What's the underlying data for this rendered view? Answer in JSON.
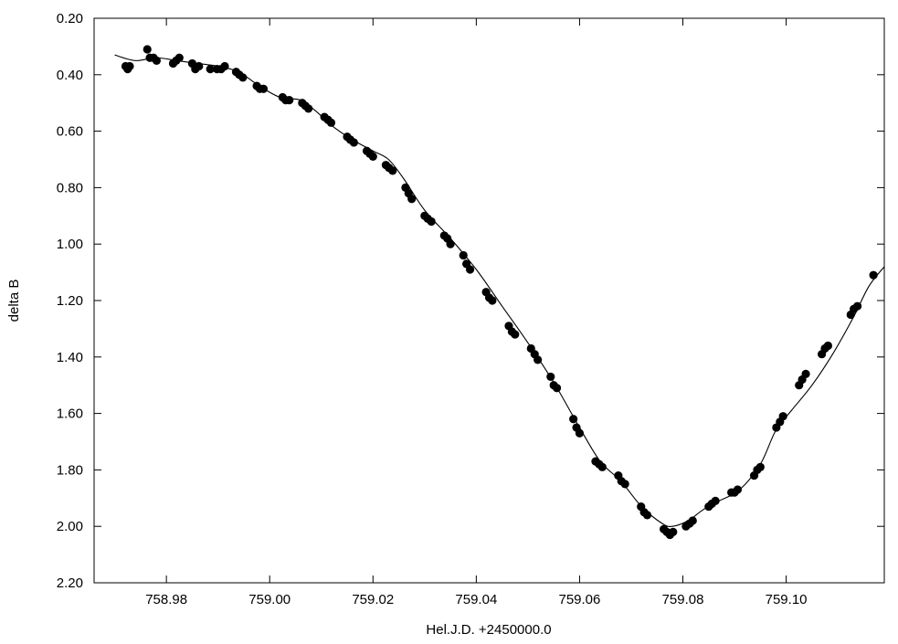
{
  "chart_data": {
    "type": "scatter",
    "title": "",
    "xlabel": "Hel.J.D. +2450000.0",
    "ylabel": "delta B",
    "xlim": [
      758.966,
      759.119
    ],
    "ylim": [
      0.2,
      2.2
    ],
    "y_inverted": true,
    "grid": false,
    "x_ticks": [
      {
        "value": 758.98,
        "label": "758.98"
      },
      {
        "value": 759.0,
        "label": "759.00"
      },
      {
        "value": 759.02,
        "label": "759.02"
      },
      {
        "value": 759.04,
        "label": "759.04"
      },
      {
        "value": 759.06,
        "label": "759.06"
      },
      {
        "value": 759.08,
        "label": "759.08"
      },
      {
        "value": 759.1,
        "label": "759.10"
      }
    ],
    "y_ticks": [
      {
        "value": 0.2,
        "label": "0.20"
      },
      {
        "value": 0.4,
        "label": "0.40"
      },
      {
        "value": 0.6,
        "label": "0.60"
      },
      {
        "value": 0.8,
        "label": "0.80"
      },
      {
        "value": 1.0,
        "label": "1.00"
      },
      {
        "value": 1.2,
        "label": "1.20"
      },
      {
        "value": 1.4,
        "label": "1.40"
      },
      {
        "value": 1.6,
        "label": "1.60"
      },
      {
        "value": 1.8,
        "label": "1.80"
      },
      {
        "value": 2.0,
        "label": "2.00"
      },
      {
        "value": 2.2,
        "label": "2.20"
      }
    ],
    "series": [
      {
        "kind": "points",
        "color": "#000000",
        "points": [
          [
            758.9721,
            0.37
          ],
          [
            758.9725,
            0.38
          ],
          [
            758.9729,
            0.37
          ],
          [
            758.9763,
            0.31
          ],
          [
            758.9768,
            0.34
          ],
          [
            758.9775,
            0.34
          ],
          [
            758.9781,
            0.35
          ],
          [
            758.9813,
            0.36
          ],
          [
            758.9819,
            0.35
          ],
          [
            758.9825,
            0.34
          ],
          [
            758.985,
            0.36
          ],
          [
            758.9856,
            0.38
          ],
          [
            758.9863,
            0.37
          ],
          [
            758.9885,
            0.38
          ],
          [
            758.9898,
            0.38
          ],
          [
            758.9906,
            0.38
          ],
          [
            758.9913,
            0.37
          ],
          [
            758.9935,
            0.39
          ],
          [
            758.9941,
            0.4
          ],
          [
            758.9948,
            0.41
          ],
          [
            758.9975,
            0.44
          ],
          [
            758.9981,
            0.45
          ],
          [
            758.9988,
            0.45
          ],
          [
            759.0025,
            0.48
          ],
          [
            759.0031,
            0.49
          ],
          [
            759.0038,
            0.49
          ],
          [
            759.0063,
            0.5
          ],
          [
            759.0069,
            0.51
          ],
          [
            759.0075,
            0.52
          ],
          [
            759.0106,
            0.55
          ],
          [
            759.0113,
            0.56
          ],
          [
            759.0119,
            0.57
          ],
          [
            759.015,
            0.62
          ],
          [
            759.0156,
            0.63
          ],
          [
            759.0163,
            0.64
          ],
          [
            759.0188,
            0.67
          ],
          [
            759.0194,
            0.68
          ],
          [
            759.02,
            0.69
          ],
          [
            759.0225,
            0.72
          ],
          [
            759.0231,
            0.73
          ],
          [
            759.0238,
            0.74
          ],
          [
            759.0263,
            0.8
          ],
          [
            759.0269,
            0.82
          ],
          [
            759.0275,
            0.84
          ],
          [
            759.03,
            0.9
          ],
          [
            759.0306,
            0.91
          ],
          [
            759.0313,
            0.92
          ],
          [
            759.0338,
            0.97
          ],
          [
            759.0344,
            0.98
          ],
          [
            759.035,
            1.0
          ],
          [
            759.0375,
            1.04
          ],
          [
            759.0381,
            1.07
          ],
          [
            759.0388,
            1.09
          ],
          [
            759.0419,
            1.17
          ],
          [
            759.0425,
            1.19
          ],
          [
            759.0431,
            1.2
          ],
          [
            759.0463,
            1.29
          ],
          [
            759.0469,
            1.31
          ],
          [
            759.0475,
            1.32
          ],
          [
            759.0506,
            1.37
          ],
          [
            759.0513,
            1.39
          ],
          [
            759.0519,
            1.41
          ],
          [
            759.0544,
            1.47
          ],
          [
            759.055,
            1.5
          ],
          [
            759.0556,
            1.51
          ],
          [
            759.0588,
            1.62
          ],
          [
            759.0594,
            1.65
          ],
          [
            759.06,
            1.67
          ],
          [
            759.0631,
            1.77
          ],
          [
            759.0638,
            1.78
          ],
          [
            759.0644,
            1.79
          ],
          [
            759.0675,
            1.82
          ],
          [
            759.0681,
            1.84
          ],
          [
            759.0688,
            1.85
          ],
          [
            759.0719,
            1.93
          ],
          [
            759.0725,
            1.95
          ],
          [
            759.0731,
            1.96
          ],
          [
            759.0763,
            2.01
          ],
          [
            759.0769,
            2.02
          ],
          [
            759.0775,
            2.03
          ],
          [
            759.0781,
            2.02
          ],
          [
            759.0806,
            2.0
          ],
          [
            759.0813,
            1.99
          ],
          [
            759.0819,
            1.98
          ],
          [
            759.085,
            1.93
          ],
          [
            759.0856,
            1.92
          ],
          [
            759.0863,
            1.91
          ],
          [
            759.0894,
            1.88
          ],
          [
            759.09,
            1.88
          ],
          [
            759.0906,
            1.87
          ],
          [
            759.0938,
            1.82
          ],
          [
            759.0944,
            1.8
          ],
          [
            759.095,
            1.79
          ],
          [
            759.0981,
            1.65
          ],
          [
            759.0988,
            1.63
          ],
          [
            759.0994,
            1.61
          ],
          [
            759.1025,
            1.5
          ],
          [
            759.1031,
            1.48
          ],
          [
            759.1038,
            1.46
          ],
          [
            759.1069,
            1.39
          ],
          [
            759.1075,
            1.37
          ],
          [
            759.1081,
            1.36
          ],
          [
            759.1125,
            1.25
          ],
          [
            759.1131,
            1.23
          ],
          [
            759.1138,
            1.22
          ],
          [
            759.1169,
            1.11
          ]
        ]
      },
      {
        "kind": "line",
        "color": "#000000",
        "points": [
          [
            758.97,
            0.33
          ],
          [
            758.974,
            0.35
          ],
          [
            758.978,
            0.34
          ],
          [
            758.982,
            0.35
          ],
          [
            758.986,
            0.36
          ],
          [
            758.99,
            0.37
          ],
          [
            758.994,
            0.39
          ],
          [
            758.998,
            0.44
          ],
          [
            759.002,
            0.48
          ],
          [
            759.006,
            0.49
          ],
          [
            759.009,
            0.53
          ],
          [
            759.012,
            0.58
          ],
          [
            759.016,
            0.63
          ],
          [
            759.02,
            0.67
          ],
          [
            759.023,
            0.7
          ],
          [
            759.026,
            0.77
          ],
          [
            759.03,
            0.88
          ],
          [
            759.035,
            0.98
          ],
          [
            759.04,
            1.09
          ],
          [
            759.045,
            1.22
          ],
          [
            759.05,
            1.35
          ],
          [
            759.055,
            1.49
          ],
          [
            759.06,
            1.65
          ],
          [
            759.064,
            1.77
          ],
          [
            759.068,
            1.84
          ],
          [
            759.072,
            1.93
          ],
          [
            759.076,
            1.99
          ],
          [
            759.078,
            2.0
          ],
          [
            759.081,
            1.98
          ],
          [
            759.084,
            1.94
          ],
          [
            759.087,
            1.91
          ],
          [
            759.091,
            1.87
          ],
          [
            759.095,
            1.78
          ],
          [
            759.098,
            1.66
          ],
          [
            759.101,
            1.59
          ],
          [
            759.105,
            1.5
          ],
          [
            759.109,
            1.39
          ],
          [
            759.113,
            1.26
          ],
          [
            759.116,
            1.15
          ],
          [
            759.119,
            1.08
          ]
        ]
      }
    ]
  }
}
